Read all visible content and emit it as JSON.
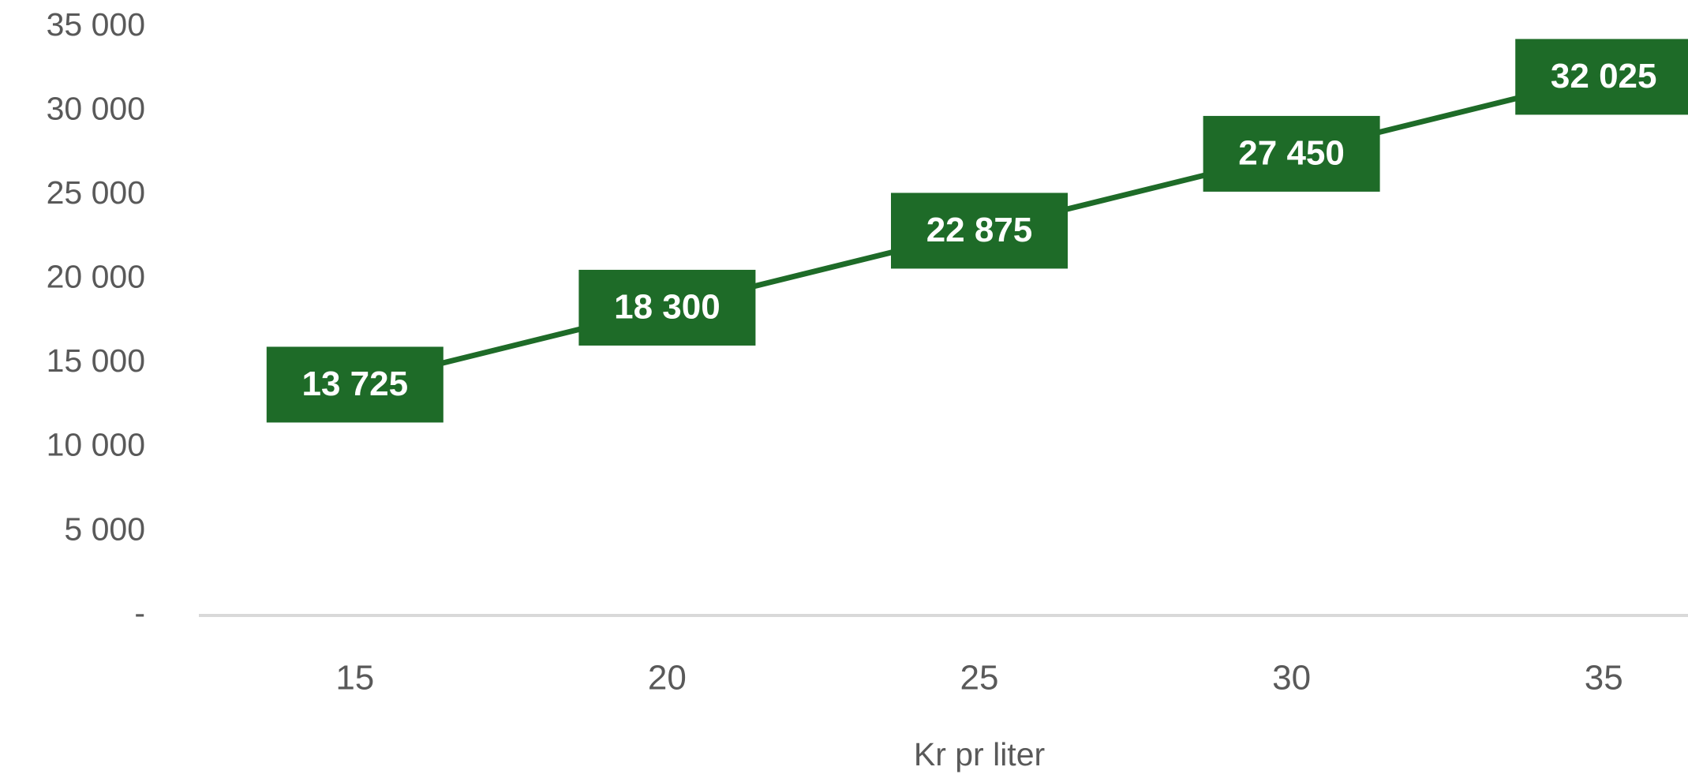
{
  "chart_data": {
    "type": "line",
    "x_label": "Kr pr liter",
    "categories": [
      "15",
      "20",
      "25",
      "30",
      "35"
    ],
    "values": [
      13725,
      18300,
      22875,
      27450,
      32025
    ],
    "value_labels": [
      "13 725",
      "18 300",
      "22 875",
      "27 450",
      "32 025"
    ],
    "color": "#1e6b28",
    "ylim": [
      0,
      35000
    ],
    "yticks": [
      {
        "value": 0,
        "label": "-"
      },
      {
        "value": 5000,
        "label": "5 000"
      },
      {
        "value": 10000,
        "label": "10 000"
      },
      {
        "value": 15000,
        "label": "15 000"
      },
      {
        "value": 20000,
        "label": "20 000"
      },
      {
        "value": 25000,
        "label": "25 000"
      },
      {
        "value": 30000,
        "label": "30 000"
      },
      {
        "value": 35000,
        "label": "35 000"
      }
    ],
    "grid": false
  }
}
